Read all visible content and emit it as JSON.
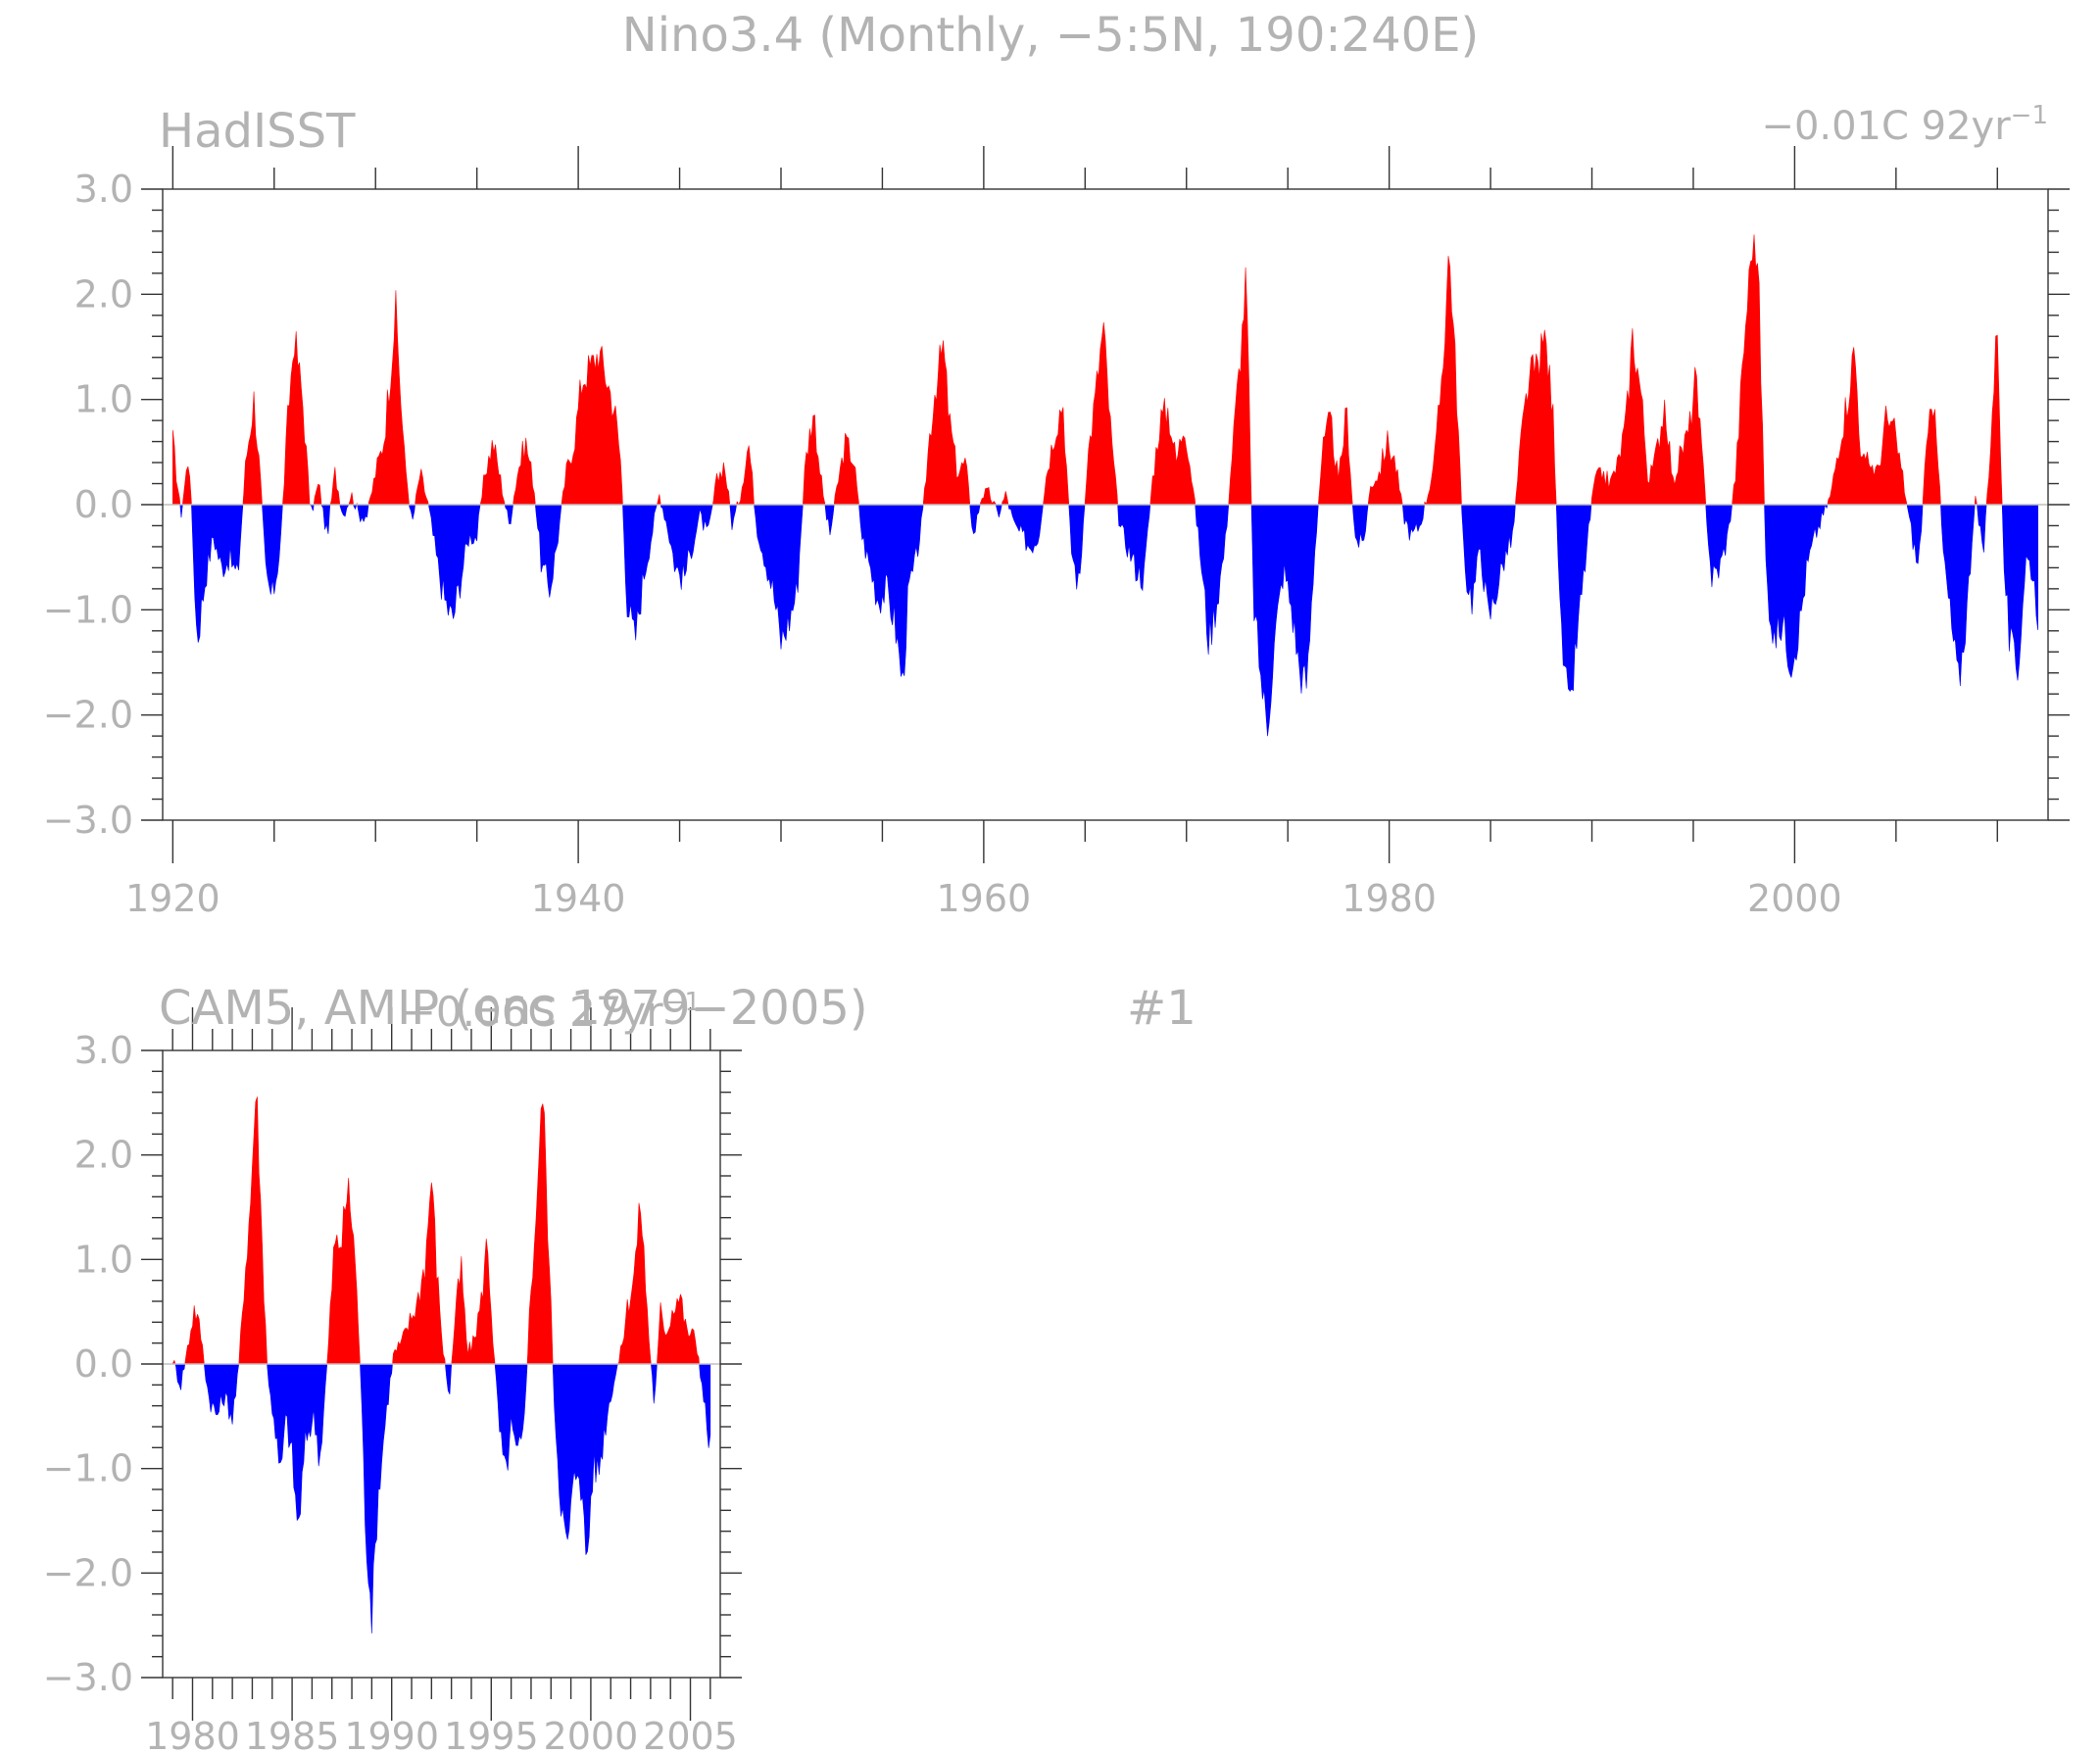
{
  "title": "Nino3.4 (Monthly, −5:5N, 190:240E)",
  "colors": {
    "positive": "#ff0000",
    "negative": "#0000ff",
    "text": "#b3b3b3",
    "axis": "#333333"
  },
  "chart_data": [
    {
      "type": "area",
      "panel_label": "HadISST",
      "trend_label": "−0.01C 92yr",
      "trend_exponent": "−1",
      "xlim": [
        1919.5,
        2012.5
      ],
      "ylim": [
        -3,
        3
      ],
      "yticks": [
        3,
        2,
        1,
        0,
        -1,
        -2,
        -3
      ],
      "ytick_labels": [
        "3.0",
        "2.0",
        "1.0",
        "0.0",
        "−1.0",
        "−2.0",
        "−3.0"
      ],
      "xticks": [
        1920,
        1940,
        1960,
        1980,
        2000
      ],
      "xtick_labels": [
        "1920",
        "1940",
        "1960",
        "1980",
        "2000"
      ],
      "xstart": 1920.0,
      "xend": 2012.0,
      "anchors": [
        [
          1920.0,
          0.6
        ],
        [
          1920.4,
          -0.1
        ],
        [
          1920.8,
          0.5
        ],
        [
          1921.2,
          -1.3
        ],
        [
          1921.6,
          -0.7
        ],
        [
          1922.0,
          -0.3
        ],
        [
          1922.4,
          -0.6
        ],
        [
          1922.8,
          -0.5
        ],
        [
          1923.2,
          -0.7
        ],
        [
          1923.6,
          0.4
        ],
        [
          1924.0,
          1.0
        ],
        [
          1924.3,
          0.3
        ],
        [
          1924.6,
          -0.7
        ],
        [
          1924.9,
          -0.9
        ],
        [
          1925.3,
          -0.4
        ],
        [
          1925.7,
          0.9
        ],
        [
          1926.0,
          1.6
        ],
        [
          1926.4,
          1.0
        ],
        [
          1926.8,
          -0.1
        ],
        [
          1927.2,
          0.2
        ],
        [
          1927.6,
          -0.3
        ],
        [
          1928.0,
          0.3
        ],
        [
          1928.4,
          -0.1
        ],
        [
          1928.8,
          0.1
        ],
        [
          1929.2,
          -0.1
        ],
        [
          1929.6,
          -0.1
        ],
        [
          1930.0,
          0.3
        ],
        [
          1930.4,
          0.6
        ],
        [
          1930.7,
          1.2
        ],
        [
          1931.0,
          1.85
        ],
        [
          1931.4,
          0.5
        ],
        [
          1931.8,
          -0.2
        ],
        [
          1932.2,
          0.3
        ],
        [
          1932.6,
          0.0
        ],
        [
          1933.0,
          -0.5
        ],
        [
          1933.4,
          -0.9
        ],
        [
          1933.8,
          -1.1
        ],
        [
          1934.2,
          -0.7
        ],
        [
          1934.6,
          -0.3
        ],
        [
          1935.0,
          -0.3
        ],
        [
          1935.4,
          0.3
        ],
        [
          1935.8,
          0.6
        ],
        [
          1936.2,
          0.2
        ],
        [
          1936.6,
          -0.2
        ],
        [
          1937.0,
          0.3
        ],
        [
          1937.4,
          0.6
        ],
        [
          1937.8,
          0.2
        ],
        [
          1938.2,
          -0.6
        ],
        [
          1938.6,
          -0.8
        ],
        [
          1939.0,
          -0.3
        ],
        [
          1939.4,
          0.3
        ],
        [
          1939.8,
          0.6
        ],
        [
          1940.2,
          1.2
        ],
        [
          1940.6,
          1.3
        ],
        [
          1941.0,
          1.45
        ],
        [
          1941.4,
          1.2
        ],
        [
          1941.8,
          0.9
        ],
        [
          1942.1,
          0.4
        ],
        [
          1942.4,
          -0.9
        ],
        [
          1942.8,
          -1.3
        ],
        [
          1943.2,
          -0.7
        ],
        [
          1943.6,
          -0.3
        ],
        [
          1944.0,
          0.1
        ],
        [
          1944.4,
          -0.2
        ],
        [
          1944.8,
          -0.6
        ],
        [
          1945.2,
          -0.7
        ],
        [
          1945.6,
          -0.4
        ],
        [
          1946.0,
          -0.1
        ],
        [
          1946.4,
          -0.3
        ],
        [
          1946.8,
          0.2
        ],
        [
          1947.2,
          0.4
        ],
        [
          1947.6,
          -0.2
        ],
        [
          1948.0,
          0.1
        ],
        [
          1948.4,
          0.6
        ],
        [
          1948.8,
          -0.2
        ],
        [
          1949.2,
          -0.5
        ],
        [
          1949.6,
          -0.8
        ],
        [
          1950.0,
          -1.3
        ],
        [
          1950.4,
          -1.1
        ],
        [
          1950.8,
          -0.8
        ],
        [
          1951.2,
          0.4
        ],
        [
          1951.6,
          0.9
        ],
        [
          1952.0,
          0.2
        ],
        [
          1952.4,
          -0.3
        ],
        [
          1952.8,
          0.2
        ],
        [
          1953.2,
          0.6
        ],
        [
          1953.6,
          0.4
        ],
        [
          1954.0,
          -0.3
        ],
        [
          1954.4,
          -0.6
        ],
        [
          1954.8,
          -0.9
        ],
        [
          1955.2,
          -0.8
        ],
        [
          1955.6,
          -1.1
        ],
        [
          1956.0,
          -1.7
        ],
        [
          1956.3,
          -0.8
        ],
        [
          1956.6,
          -0.6
        ],
        [
          1957.0,
          -0.1
        ],
        [
          1957.3,
          0.6
        ],
        [
          1957.6,
          1.1
        ],
        [
          1958.0,
          1.5
        ],
        [
          1958.3,
          0.8
        ],
        [
          1958.7,
          0.3
        ],
        [
          1959.1,
          0.4
        ],
        [
          1959.5,
          -0.3
        ],
        [
          1959.9,
          0.1
        ],
        [
          1960.3,
          0.1
        ],
        [
          1960.7,
          -0.1
        ],
        [
          1961.1,
          0.1
        ],
        [
          1961.5,
          -0.2
        ],
        [
          1961.9,
          -0.3
        ],
        [
          1962.3,
          -0.4
        ],
        [
          1962.7,
          -0.3
        ],
        [
          1963.1,
          0.3
        ],
        [
          1963.5,
          0.7
        ],
        [
          1963.9,
          1.0
        ],
        [
          1964.3,
          -0.4
        ],
        [
          1964.7,
          -0.8
        ],
        [
          1965.1,
          0.4
        ],
        [
          1965.5,
          1.0
        ],
        [
          1965.9,
          1.7
        ],
        [
          1966.3,
          0.6
        ],
        [
          1966.7,
          -0.2
        ],
        [
          1967.1,
          -0.4
        ],
        [
          1967.5,
          -0.6
        ],
        [
          1967.9,
          -0.7
        ],
        [
          1968.3,
          0.2
        ],
        [
          1968.7,
          0.8
        ],
        [
          1969.1,
          0.9
        ],
        [
          1969.5,
          0.4
        ],
        [
          1969.9,
          0.8
        ],
        [
          1970.3,
          0.2
        ],
        [
          1970.7,
          -0.5
        ],
        [
          1971.1,
          -1.3
        ],
        [
          1971.5,
          -0.9
        ],
        [
          1971.9,
          -0.4
        ],
        [
          1972.3,
          0.6
        ],
        [
          1972.7,
          1.5
        ],
        [
          1972.95,
          2.2
        ],
        [
          1973.3,
          -0.9
        ],
        [
          1973.7,
          -1.7
        ],
        [
          1974.0,
          -2.1
        ],
        [
          1974.4,
          -1.2
        ],
        [
          1974.8,
          -0.6
        ],
        [
          1975.2,
          -1.0
        ],
        [
          1975.6,
          -1.6
        ],
        [
          1975.95,
          -1.7
        ],
        [
          1976.3,
          -0.5
        ],
        [
          1976.7,
          0.5
        ],
        [
          1977.1,
          0.8
        ],
        [
          1977.5,
          0.2
        ],
        [
          1977.9,
          0.9
        ],
        [
          1978.3,
          -0.3
        ],
        [
          1978.7,
          -0.4
        ],
        [
          1979.1,
          0.2
        ],
        [
          1979.5,
          0.3
        ],
        [
          1979.9,
          0.6
        ],
        [
          1980.3,
          0.4
        ],
        [
          1980.7,
          -0.1
        ],
        [
          1981.1,
          -0.3
        ],
        [
          1981.5,
          -0.2
        ],
        [
          1981.9,
          0.1
        ],
        [
          1982.3,
          0.5
        ],
        [
          1982.7,
          1.5
        ],
        [
          1982.95,
          2.45
        ],
        [
          1983.3,
          1.2
        ],
        [
          1983.7,
          -0.6
        ],
        [
          1984.1,
          -0.9
        ],
        [
          1984.5,
          -0.4
        ],
        [
          1984.9,
          -1.1
        ],
        [
          1985.3,
          -0.8
        ],
        [
          1985.7,
          -0.5
        ],
        [
          1986.1,
          -0.3
        ],
        [
          1986.5,
          0.6
        ],
        [
          1986.9,
          1.2
        ],
        [
          1987.3,
          1.3
        ],
        [
          1987.7,
          1.6
        ],
        [
          1988.1,
          0.8
        ],
        [
          1988.5,
          -1.3
        ],
        [
          1988.9,
          -2.0
        ],
        [
          1989.3,
          -1.2
        ],
        [
          1989.7,
          -0.5
        ],
        [
          1990.1,
          0.2
        ],
        [
          1990.5,
          0.3
        ],
        [
          1990.9,
          0.2
        ],
        [
          1991.3,
          0.4
        ],
        [
          1991.7,
          0.8
        ],
        [
          1992.0,
          1.6
        ],
        [
          1992.4,
          1.1
        ],
        [
          1992.8,
          0.2
        ],
        [
          1993.2,
          0.5
        ],
        [
          1993.6,
          1.0
        ],
        [
          1994.0,
          0.2
        ],
        [
          1994.4,
          0.5
        ],
        [
          1994.8,
          0.7
        ],
        [
          1995.1,
          1.2
        ],
        [
          1995.5,
          0.3
        ],
        [
          1995.9,
          -0.7
        ],
        [
          1996.3,
          -0.6
        ],
        [
          1996.7,
          -0.3
        ],
        [
          1997.1,
          0.3
        ],
        [
          1997.5,
          1.5
        ],
        [
          1997.9,
          2.5
        ],
        [
          1998.2,
          2.3
        ],
        [
          1998.6,
          -0.7
        ],
        [
          1999.0,
          -1.3
        ],
        [
          1999.4,
          -1.1
        ],
        [
          1999.8,
          -1.5
        ],
        [
          2000.2,
          -1.2
        ],
        [
          2000.6,
          -0.6
        ],
        [
          2001.0,
          -0.3
        ],
        [
          2001.4,
          -0.1
        ],
        [
          2001.8,
          0.1
        ],
        [
          2002.2,
          0.6
        ],
        [
          2002.6,
          1.0
        ],
        [
          2002.95,
          1.5
        ],
        [
          2003.3,
          0.4
        ],
        [
          2003.7,
          0.4
        ],
        [
          2004.1,
          0.3
        ],
        [
          2004.5,
          0.8
        ],
        [
          2004.9,
          0.7
        ],
        [
          2005.3,
          0.3
        ],
        [
          2005.7,
          -0.2
        ],
        [
          2006.1,
          -0.6
        ],
        [
          2006.5,
          0.5
        ],
        [
          2006.9,
          1.1
        ],
        [
          2007.3,
          -0.4
        ],
        [
          2007.7,
          -1.1
        ],
        [
          2008.1,
          -1.7
        ],
        [
          2008.5,
          -1.0
        ],
        [
          2008.9,
          0.1
        ],
        [
          2009.3,
          -0.5
        ],
        [
          2009.7,
          0.7
        ],
        [
          2010.0,
          1.75
        ],
        [
          2010.3,
          -0.5
        ],
        [
          2010.6,
          -1.3
        ],
        [
          2011.0,
          -1.6
        ],
        [
          2011.4,
          -0.5
        ],
        [
          2011.7,
          -0.6
        ],
        [
          2012.0,
          -1.0
        ]
      ]
    },
    {
      "type": "area",
      "panel_label": "CAM5, AMIP (ens 1979−2005)",
      "trend_label": "−0.06C 27yr",
      "trend_exponent": "−1",
      "member_label": "#1",
      "xlim": [
        1978.5,
        2006.5
      ],
      "ylim": [
        -3,
        3
      ],
      "yticks": [
        3,
        2,
        1,
        0,
        -1,
        -2,
        -3
      ],
      "ytick_labels": [
        "3.0",
        "2.0",
        "1.0",
        "0.0",
        "−1.0",
        "−2.0",
        "−3.0"
      ],
      "xticks": [
        1980,
        1985,
        1990,
        1995,
        2000,
        2005
      ],
      "xtick_labels": [
        "1980",
        "1985",
        "1990",
        "1995",
        "2000",
        "2005"
      ],
      "xstart": 1979.0,
      "xend": 2006.0,
      "anchors": [
        [
          1979.0,
          0.05
        ],
        [
          1979.4,
          -0.2
        ],
        [
          1979.8,
          0.2
        ],
        [
          1980.1,
          0.55
        ],
        [
          1980.4,
          0.3
        ],
        [
          1980.8,
          -0.3
        ],
        [
          1981.2,
          -0.5
        ],
        [
          1981.6,
          -0.3
        ],
        [
          1982.0,
          -0.5
        ],
        [
          1982.3,
          -0.1
        ],
        [
          1982.6,
          0.8
        ],
        [
          1982.9,
          1.5
        ],
        [
          1983.2,
          2.7
        ],
        [
          1983.5,
          1.1
        ],
        [
          1983.8,
          -0.2
        ],
        [
          1984.1,
          -0.5
        ],
        [
          1984.4,
          -1.1
        ],
        [
          1984.7,
          -0.5
        ],
        [
          1985.0,
          -0.9
        ],
        [
          1985.3,
          -1.6
        ],
        [
          1985.7,
          -0.7
        ],
        [
          1986.1,
          -0.5
        ],
        [
          1986.4,
          -0.9
        ],
        [
          1986.8,
          0.1
        ],
        [
          1987.1,
          1.1
        ],
        [
          1987.5,
          1.2
        ],
        [
          1987.8,
          1.7
        ],
        [
          1988.1,
          1.2
        ],
        [
          1988.4,
          0.1
        ],
        [
          1988.7,
          -1.6
        ],
        [
          1989.0,
          -2.4
        ],
        [
          1989.3,
          -1.3
        ],
        [
          1989.7,
          -0.5
        ],
        [
          1990.1,
          0.1
        ],
        [
          1990.5,
          0.2
        ],
        [
          1990.9,
          0.4
        ],
        [
          1991.3,
          0.6
        ],
        [
          1991.7,
          1.0
        ],
        [
          1992.0,
          1.8
        ],
        [
          1992.3,
          0.8
        ],
        [
          1992.6,
          0.1
        ],
        [
          1992.9,
          -0.3
        ],
        [
          1993.2,
          0.5
        ],
        [
          1993.5,
          0.9
        ],
        [
          1993.8,
          0.1
        ],
        [
          1994.1,
          0.2
        ],
        [
          1994.5,
          0.6
        ],
        [
          1994.8,
          1.2
        ],
        [
          1995.1,
          0.2
        ],
        [
          1995.4,
          -0.6
        ],
        [
          1995.7,
          -1.1
        ],
        [
          1996.0,
          -0.6
        ],
        [
          1996.3,
          -0.9
        ],
        [
          1996.6,
          -0.7
        ],
        [
          1996.9,
          0.4
        ],
        [
          1997.2,
          1.3
        ],
        [
          1997.6,
          2.65
        ],
        [
          1997.9,
          1.0
        ],
        [
          1998.2,
          -0.5
        ],
        [
          1998.5,
          -1.3
        ],
        [
          1998.8,
          -1.8
        ],
        [
          1999.1,
          -1.2
        ],
        [
          1999.4,
          -0.9
        ],
        [
          1999.8,
          -1.9
        ],
        [
          2000.1,
          -1.0
        ],
        [
          2000.4,
          -1.0
        ],
        [
          2000.8,
          -0.5
        ],
        [
          2001.1,
          -0.2
        ],
        [
          2001.5,
          0.1
        ],
        [
          2001.8,
          0.5
        ],
        [
          2002.2,
          0.9
        ],
        [
          2002.5,
          1.55
        ],
        [
          2002.9,
          0.3
        ],
        [
          2003.2,
          -0.4
        ],
        [
          2003.5,
          0.5
        ],
        [
          2003.8,
          0.3
        ],
        [
          2004.2,
          0.6
        ],
        [
          2004.5,
          0.65
        ],
        [
          2004.8,
          0.3
        ],
        [
          2005.1,
          0.3
        ],
        [
          2005.4,
          0.1
        ],
        [
          2005.7,
          -0.4
        ],
        [
          2005.95,
          -0.75
        ]
      ]
    }
  ]
}
